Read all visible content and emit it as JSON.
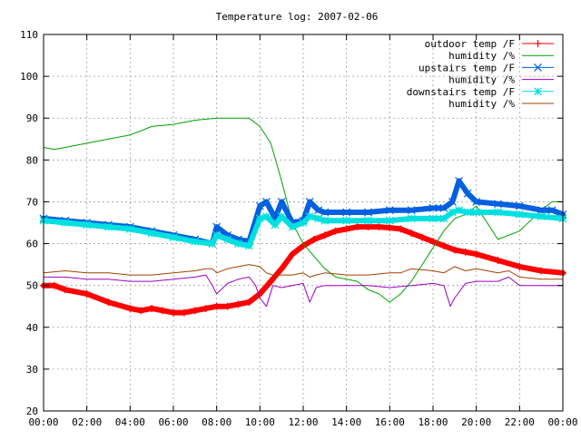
{
  "chart_data": {
    "type": "line",
    "title": "Temperature log: 2007-02-06",
    "xlabel": "",
    "ylabel": "",
    "xlim": [
      0,
      24
    ],
    "ylim": [
      20,
      110
    ],
    "grid": true,
    "legend_position": "top-right",
    "x_ticks": [
      {
        "value": 0,
        "label": "00:00"
      },
      {
        "value": 2,
        "label": "02:00"
      },
      {
        "value": 4,
        "label": "04:00"
      },
      {
        "value": 6,
        "label": "06:00"
      },
      {
        "value": 8,
        "label": "08:00"
      },
      {
        "value": 10,
        "label": "10:00"
      },
      {
        "value": 12,
        "label": "12:00"
      },
      {
        "value": 14,
        "label": "14:00"
      },
      {
        "value": 16,
        "label": "16:00"
      },
      {
        "value": 18,
        "label": "18:00"
      },
      {
        "value": 20,
        "label": "20:00"
      },
      {
        "value": 22,
        "label": "22:00"
      },
      {
        "value": 24,
        "label": "00:00"
      }
    ],
    "y_ticks": [
      {
        "value": 20,
        "label": "20"
      },
      {
        "value": 30,
        "label": "30"
      },
      {
        "value": 40,
        "label": "40"
      },
      {
        "value": 50,
        "label": "50"
      },
      {
        "value": 60,
        "label": "60"
      },
      {
        "value": 70,
        "label": "70"
      },
      {
        "value": 80,
        "label": "80"
      },
      {
        "value": 90,
        "label": "90"
      },
      {
        "value": 100,
        "label": "100"
      },
      {
        "value": 110,
        "label": "110"
      }
    ],
    "series": [
      {
        "name": "outdoor temp /F",
        "color": "#ff0000",
        "marker": "+",
        "width": 6,
        "x": [
          0,
          0.5,
          1,
          2,
          3,
          4,
          4.5,
          5,
          5.5,
          6,
          6.5,
          7,
          7.5,
          8,
          8.5,
          9,
          9.5,
          10,
          10.5,
          11,
          11.5,
          12,
          12.5,
          13,
          13.5,
          14,
          14.5,
          15,
          15.5,
          16,
          16.5,
          17,
          17.5,
          18,
          18.5,
          19,
          19.5,
          20,
          21,
          22,
          23,
          24
        ],
        "y": [
          50,
          50,
          49,
          48,
          46,
          44.5,
          44,
          44.5,
          44,
          43.5,
          43.5,
          44,
          44.5,
          45,
          45,
          45.5,
          46,
          48,
          51,
          54,
          57.5,
          59.5,
          61,
          62,
          63,
          63.5,
          64,
          64,
          64,
          63.8,
          63.5,
          62.5,
          61.5,
          60.5,
          59.5,
          58.5,
          58,
          57.5,
          56,
          54.5,
          53.5,
          53
        ]
      },
      {
        "name": "humidity /%",
        "color": "#00a000",
        "marker": "",
        "width": 1,
        "x": [
          0,
          0.5,
          1,
          2,
          3,
          4,
          4.5,
          5,
          6,
          7,
          8,
          8.5,
          9,
          9.5,
          10,
          10.5,
          11,
          11.5,
          12,
          12.5,
          13,
          13.5,
          14,
          14.5,
          15,
          15.5,
          16,
          16.5,
          17,
          17.5,
          18,
          18.5,
          19,
          19.5,
          20,
          21,
          22,
          23,
          23.5,
          24
        ],
        "y": [
          83,
          82.5,
          83,
          84,
          85,
          86,
          87,
          88,
          88.5,
          89.5,
          90,
          90,
          90,
          90,
          88,
          84,
          75,
          65,
          60,
          57,
          54,
          52,
          51.5,
          51,
          49,
          48,
          46,
          48,
          51,
          55,
          59,
          63,
          66,
          67,
          69,
          61,
          63,
          68,
          70,
          70
        ]
      },
      {
        "name": "upstairs temp /F",
        "color": "#0060e0",
        "marker": "x",
        "width": 6,
        "x": [
          0,
          1,
          2,
          3,
          4,
          5,
          6,
          7,
          7.8,
          8,
          8.5,
          9,
          9.5,
          10,
          10.3,
          10.7,
          11,
          11.5,
          12,
          12.3,
          12.7,
          13,
          14,
          15,
          16,
          17,
          18,
          18.5,
          18.9,
          19.2,
          19.6,
          20,
          21,
          22,
          23,
          23.5,
          24
        ],
        "y": [
          66,
          65.5,
          65,
          64.5,
          64,
          63,
          62,
          61,
          60,
          64,
          62,
          61,
          60.5,
          69,
          70,
          66,
          70,
          65,
          65.5,
          70,
          68,
          67.5,
          67.5,
          67.5,
          68,
          68,
          68.5,
          68.5,
          70,
          75,
          72,
          70,
          69.5,
          69,
          68,
          68,
          67
        ]
      },
      {
        "name": "humidity /%",
        "color": "#a000c0",
        "marker": "",
        "width": 1,
        "x": [
          0,
          1,
          2,
          3,
          4,
          5,
          6,
          7,
          7.5,
          7.8,
          8,
          8.5,
          9,
          9.5,
          9.8,
          10,
          10.3,
          10.6,
          11,
          11.5,
          12,
          12.3,
          12.6,
          13,
          14,
          15,
          16,
          17,
          18,
          18.5,
          18.8,
          19,
          19.5,
          20,
          21,
          21.5,
          22,
          23,
          24
        ],
        "y": [
          52,
          52,
          51.5,
          51.5,
          51,
          51,
          51.5,
          52,
          52.5,
          50,
          48,
          50.5,
          51.5,
          52,
          50,
          47,
          45,
          50,
          49.5,
          50,
          50.5,
          46,
          49.5,
          50,
          50,
          50,
          49.5,
          50,
          50.5,
          50,
          45,
          47,
          50.5,
          51,
          51,
          52,
          50,
          50,
          50
        ]
      },
      {
        "name": "downstairs temp /F",
        "color": "#00e0e0",
        "marker": "*",
        "width": 6,
        "x": [
          0,
          1,
          2,
          3,
          4,
          5,
          6,
          7,
          7.8,
          8,
          8.5,
          9,
          9.5,
          10,
          10.3,
          10.7,
          11,
          11.5,
          12,
          12.3,
          12.7,
          13,
          14,
          15,
          16,
          17,
          18,
          18.5,
          18.9,
          19.2,
          19.6,
          20,
          21,
          22,
          23,
          24
        ],
        "y": [
          65.5,
          65,
          64.5,
          64,
          63.5,
          62.5,
          61.5,
          60.5,
          60,
          62,
          61,
          60,
          59.5,
          66,
          66.5,
          64.5,
          66.5,
          64,
          65,
          66.5,
          66,
          65.5,
          65.5,
          65.5,
          65.5,
          66,
          66,
          66,
          67.5,
          68,
          67.5,
          67.5,
          67.5,
          67,
          66.5,
          66
        ]
      },
      {
        "name": "humidity /%",
        "color": "#a04000",
        "marker": "",
        "width": 1,
        "x": [
          0,
          1,
          2,
          3,
          4,
          5,
          6,
          7,
          7.5,
          7.8,
          8,
          8.5,
          9,
          9.5,
          10,
          10.3,
          10.6,
          11,
          11.5,
          12,
          12.3,
          12.6,
          13,
          14,
          15,
          16,
          16.5,
          17,
          18,
          18.5,
          19,
          19.5,
          20,
          21,
          21.5,
          22,
          23,
          24
        ],
        "y": [
          53,
          53.5,
          53,
          53,
          52.5,
          52.5,
          53,
          53.5,
          54,
          54,
          53,
          54,
          54.5,
          55,
          54.5,
          53,
          52.5,
          52.5,
          52.5,
          53,
          52,
          52.5,
          53,
          52.5,
          52.5,
          53,
          53,
          54,
          53.5,
          53,
          54.5,
          53.5,
          54,
          53,
          53.5,
          52,
          51.5,
          51.5
        ]
      }
    ]
  }
}
